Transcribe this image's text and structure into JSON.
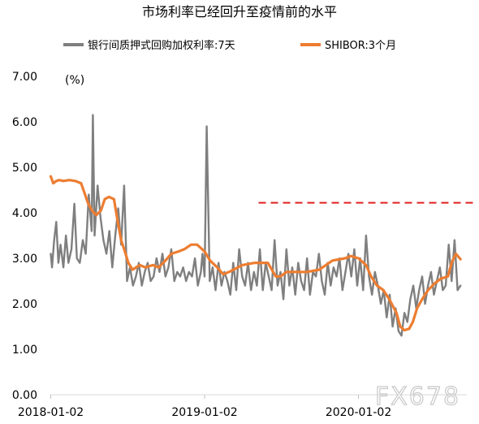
{
  "chart_data": {
    "type": "line",
    "title": "市场利率已经回升至疫情前的水平",
    "ylabel": "(%)",
    "ylim": [
      0,
      7
    ],
    "yticks": [
      "7.00",
      "6.00",
      "5.00",
      "4.00",
      "3.00",
      "2.00",
      "1.00",
      "0.00"
    ],
    "xlim": [
      "2018-01-01",
      "2020-09-15"
    ],
    "xticks": [
      {
        "date": "2018-01-02",
        "label": "2018-01-02"
      },
      {
        "date": "2019-01-02",
        "label": "2019-01-02"
      },
      {
        "date": "2020-01-02",
        "label": "2020-01-02"
      }
    ],
    "series": [
      {
        "name": "银行间质押式回购加权利率:7天",
        "color": "#7f7f7f",
        "x": [
          "2018-01-02",
          "2018-01-05",
          "2018-01-10",
          "2018-01-15",
          "2018-01-20",
          "2018-01-25",
          "2018-02-01",
          "2018-02-07",
          "2018-02-13",
          "2018-02-20",
          "2018-02-27",
          "2018-03-05",
          "2018-03-12",
          "2018-03-19",
          "2018-03-26",
          "2018-04-02",
          "2018-04-09",
          "2018-04-12",
          "2018-04-16",
          "2018-04-23",
          "2018-04-30",
          "2018-05-07",
          "2018-05-14",
          "2018-05-21",
          "2018-05-28",
          "2018-06-04",
          "2018-06-11",
          "2018-06-18",
          "2018-06-25",
          "2018-07-02",
          "2018-07-09",
          "2018-07-16",
          "2018-07-23",
          "2018-07-30",
          "2018-08-06",
          "2018-08-13",
          "2018-08-20",
          "2018-08-27",
          "2018-09-03",
          "2018-09-10",
          "2018-09-17",
          "2018-09-24",
          "2018-10-01",
          "2018-10-08",
          "2018-10-15",
          "2018-10-22",
          "2018-10-29",
          "2018-11-05",
          "2018-11-12",
          "2018-11-19",
          "2018-11-26",
          "2018-12-03",
          "2018-12-10",
          "2018-12-17",
          "2018-12-24",
          "2018-12-28",
          "2019-01-02",
          "2019-01-07",
          "2019-01-14",
          "2019-01-21",
          "2019-01-28",
          "2019-02-04",
          "2019-02-11",
          "2019-02-18",
          "2019-02-25",
          "2019-03-04",
          "2019-03-11",
          "2019-03-18",
          "2019-03-25",
          "2019-04-01",
          "2019-04-08",
          "2019-04-15",
          "2019-04-22",
          "2019-04-29",
          "2019-05-06",
          "2019-05-13",
          "2019-05-20",
          "2019-05-27",
          "2019-06-03",
          "2019-06-10",
          "2019-06-17",
          "2019-06-24",
          "2019-07-01",
          "2019-07-08",
          "2019-07-15",
          "2019-07-22",
          "2019-07-29",
          "2019-08-05",
          "2019-08-12",
          "2019-08-19",
          "2019-08-26",
          "2019-09-02",
          "2019-09-09",
          "2019-09-16",
          "2019-09-23",
          "2019-09-30",
          "2019-10-07",
          "2019-10-14",
          "2019-10-21",
          "2019-10-28",
          "2019-11-04",
          "2019-11-11",
          "2019-11-18",
          "2019-11-25",
          "2019-12-02",
          "2019-12-09",
          "2019-12-16",
          "2019-12-23",
          "2019-12-30",
          "2020-01-06",
          "2020-01-13",
          "2020-01-20",
          "2020-01-27",
          "2020-02-03",
          "2020-02-10",
          "2020-02-17",
          "2020-02-24",
          "2020-03-02",
          "2020-03-09",
          "2020-03-16",
          "2020-03-23",
          "2020-03-30",
          "2020-04-06",
          "2020-04-13",
          "2020-04-20",
          "2020-04-27",
          "2020-05-04",
          "2020-05-11",
          "2020-05-18",
          "2020-05-25",
          "2020-06-01",
          "2020-06-08",
          "2020-06-15",
          "2020-06-22",
          "2020-06-29",
          "2020-07-06",
          "2020-07-13",
          "2020-07-20",
          "2020-07-27",
          "2020-08-03",
          "2020-08-10",
          "2020-08-17",
          "2020-08-24",
          "2020-08-31"
        ],
        "values": [
          3.1,
          2.8,
          3.4,
          3.8,
          2.9,
          3.3,
          2.8,
          3.5,
          2.9,
          3.2,
          4.2,
          3.0,
          2.9,
          3.4,
          3.1,
          4.4,
          3.6,
          6.15,
          3.5,
          4.6,
          3.9,
          3.4,
          3.1,
          3.6,
          2.8,
          3.5,
          4.1,
          3.3,
          4.6,
          2.5,
          2.8,
          2.4,
          2.6,
          2.9,
          2.4,
          2.7,
          2.9,
          2.5,
          2.6,
          3.0,
          2.7,
          3.1,
          2.6,
          2.8,
          3.2,
          2.5,
          2.7,
          2.6,
          2.8,
          2.5,
          2.7,
          2.6,
          3.0,
          2.4,
          2.7,
          3.1,
          2.6,
          5.9,
          2.5,
          2.8,
          2.3,
          2.9,
          2.4,
          2.7,
          2.5,
          2.2,
          2.9,
          2.3,
          3.2,
          2.6,
          2.4,
          2.9,
          2.3,
          2.7,
          2.4,
          3.2,
          2.3,
          2.9,
          2.6,
          2.3,
          3.4,
          2.4,
          2.7,
          2.1,
          3.2,
          2.4,
          2.8,
          2.2,
          2.9,
          2.5,
          2.3,
          3.0,
          2.2,
          2.7,
          2.6,
          3.1,
          2.5,
          2.2,
          2.9,
          2.4,
          2.8,
          2.6,
          3.0,
          2.3,
          2.7,
          3.1,
          2.6,
          3.2,
          2.4,
          3.0,
          2.3,
          3.5,
          2.6,
          2.2,
          2.7,
          2.4,
          2.0,
          2.3,
          1.7,
          2.2,
          1.5,
          1.9,
          1.4,
          1.3,
          1.8,
          1.6,
          2.1,
          2.4,
          1.9,
          2.3,
          2.6,
          2.0,
          2.4,
          2.7,
          2.2,
          2.5,
          2.8,
          2.3,
          2.4,
          3.3,
          2.5,
          3.4,
          2.3,
          2.4
        ]
      },
      {
        "name": "SHIBOR:3个月",
        "color": "#ed7d31",
        "x": [
          "2018-01-02",
          "2018-01-08",
          "2018-01-15",
          "2018-01-22",
          "2018-02-01",
          "2018-02-15",
          "2018-03-01",
          "2018-03-15",
          "2018-04-01",
          "2018-04-10",
          "2018-04-20",
          "2018-05-01",
          "2018-05-10",
          "2018-05-20",
          "2018-06-01",
          "2018-06-10",
          "2018-06-18",
          "2018-06-25",
          "2018-07-05",
          "2018-07-15",
          "2018-08-01",
          "2018-08-15",
          "2018-09-01",
          "2018-09-15",
          "2018-10-01",
          "2018-10-15",
          "2018-11-01",
          "2018-11-15",
          "2018-12-01",
          "2018-12-15",
          "2019-01-02",
          "2019-01-15",
          "2019-02-01",
          "2019-02-15",
          "2019-03-01",
          "2019-04-01",
          "2019-05-01",
          "2019-06-01",
          "2019-06-20",
          "2019-07-01",
          "2019-07-15",
          "2019-08-01",
          "2019-09-01",
          "2019-10-01",
          "2019-11-01",
          "2019-12-01",
          "2019-12-15",
          "2020-01-02",
          "2020-01-20",
          "2020-02-01",
          "2020-02-15",
          "2020-03-01",
          "2020-03-15",
          "2020-04-01",
          "2020-04-10",
          "2020-04-20",
          "2020-05-01",
          "2020-05-10",
          "2020-05-20",
          "2020-06-01",
          "2020-06-15",
          "2020-07-01",
          "2020-07-15",
          "2020-08-01",
          "2020-08-10",
          "2020-08-20",
          "2020-08-31"
        ],
        "values": [
          4.8,
          4.65,
          4.7,
          4.72,
          4.7,
          4.72,
          4.7,
          4.65,
          4.2,
          4.05,
          3.95,
          4.05,
          4.3,
          4.35,
          4.3,
          3.8,
          3.4,
          3.2,
          2.9,
          2.75,
          2.85,
          2.8,
          2.85,
          2.8,
          2.95,
          3.1,
          3.15,
          3.2,
          3.3,
          3.3,
          3.15,
          2.95,
          2.8,
          2.65,
          2.7,
          2.85,
          2.9,
          2.9,
          2.6,
          2.6,
          2.7,
          2.7,
          2.7,
          2.75,
          2.95,
          3.0,
          3.05,
          3.0,
          2.85,
          2.6,
          2.4,
          2.3,
          2.1,
          1.8,
          1.5,
          1.42,
          1.45,
          1.6,
          1.9,
          2.1,
          2.3,
          2.45,
          2.55,
          2.6,
          2.9,
          3.1,
          2.98
        ]
      }
    ],
    "reference_line": {
      "value": 4.22,
      "color": "#e02020",
      "x_start": "2019-05-10"
    },
    "legend_position": "top",
    "grid": false,
    "watermark": "FX678"
  }
}
